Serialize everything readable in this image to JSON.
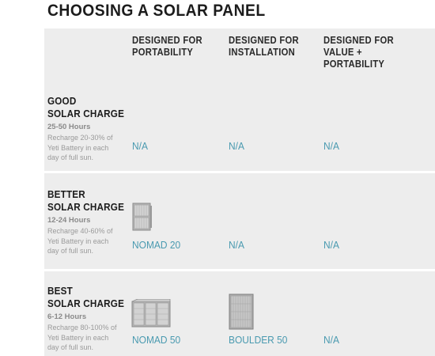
{
  "title": "CHOOSING A SOLAR PANEL",
  "columns": [
    {
      "lines": [
        "DESIGNED FOR",
        "PORTABILITY"
      ]
    },
    {
      "lines": [
        "DESIGNED FOR",
        "INSTALLATION"
      ]
    },
    {
      "lines": [
        "DESIGNED FOR",
        "VALUE +",
        "PORTABILITY"
      ]
    }
  ],
  "rows": [
    {
      "title_lines": [
        "GOOD",
        "SOLAR CHARGE"
      ],
      "hours": "25-50 Hours",
      "desc_lines": [
        "Recharge 20-30% of",
        "Yeti Battery in each",
        "day of full sun."
      ],
      "cells": [
        "N/A",
        "N/A",
        "N/A"
      ]
    },
    {
      "title_lines": [
        "BETTER",
        "SOLAR CHARGE"
      ],
      "hours": "12-24 Hours",
      "desc_lines": [
        "Recharge 40-60% of",
        "Yeti Battery in each",
        "day of full sun."
      ],
      "cells": [
        "NOMAD 20",
        "N/A",
        "N/A"
      ]
    },
    {
      "title_lines": [
        "BEST",
        "SOLAR CHARGE"
      ],
      "hours": "6-12 Hours",
      "desc_lines": [
        "Recharge 80-100% of",
        "Yeti Battery in each",
        "day of full sun."
      ],
      "cells": [
        "NOMAD 50",
        "BOULDER 50",
        "N/A"
      ]
    }
  ],
  "colors": {
    "accent": "#4a9ab0",
    "panel": "#ededed"
  },
  "product_images": [
    "nomad-20-panel",
    "nomad-50-panel",
    "boulder-50-panel"
  ]
}
